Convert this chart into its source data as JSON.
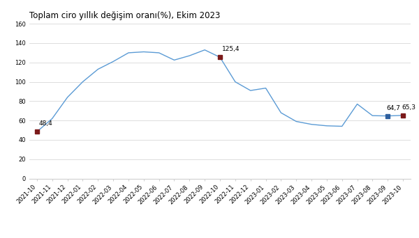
{
  "title": "Toplam ciro yıllık değişim oranı(%), Ekim 2023",
  "labels": [
    "2021-10",
    "2021-11",
    "2021-12",
    "2022-01",
    "2022-02",
    "2022-03",
    "2022-04",
    "2022-05",
    "2022-06",
    "2022-07",
    "2022-08",
    "2022-09",
    "2022-10",
    "2022-11",
    "2022-12",
    "2023-01",
    "2023-02",
    "2023-03",
    "2023-04",
    "2023-05",
    "2023-06",
    "2023-07",
    "2023-08",
    "2023-09",
    "2023-10"
  ],
  "values": [
    48.4,
    62.0,
    84.0,
    100.0,
    113.0,
    121.0,
    130.0,
    131.0,
    130.0,
    122.5,
    127.0,
    133.0,
    125.4,
    100.0,
    91.0,
    93.5,
    68.0,
    59.0,
    56.0,
    54.5,
    54.0,
    77.0,
    65.0,
    64.7,
    65.3
  ],
  "line_color": "#5b9bd5",
  "marker_red_color": "#7b1a1a",
  "marker_blue_color": "#2e5f9e",
  "annotated_points": {
    "2021-10": {
      "value": 48.4,
      "label": "48,4",
      "color": "#7b1a1a"
    },
    "2022-10": {
      "value": 125.4,
      "label": "125,4",
      "color": "#7b1a1a"
    },
    "2023-09": {
      "value": 64.7,
      "label": "64,7",
      "color": "#2e5f9e"
    },
    "2023-10": {
      "value": 65.3,
      "label": "65,3",
      "color": "#7b1a1a"
    }
  },
  "ylim": [
    0,
    160
  ],
  "yticks": [
    0,
    20,
    40,
    60,
    80,
    100,
    120,
    140,
    160
  ],
  "title_fontsize": 8.5,
  "tick_fontsize": 6.0,
  "annotation_fontsize": 6.5,
  "bg_color": "#ffffff",
  "grid_color": "#d0d0d0"
}
